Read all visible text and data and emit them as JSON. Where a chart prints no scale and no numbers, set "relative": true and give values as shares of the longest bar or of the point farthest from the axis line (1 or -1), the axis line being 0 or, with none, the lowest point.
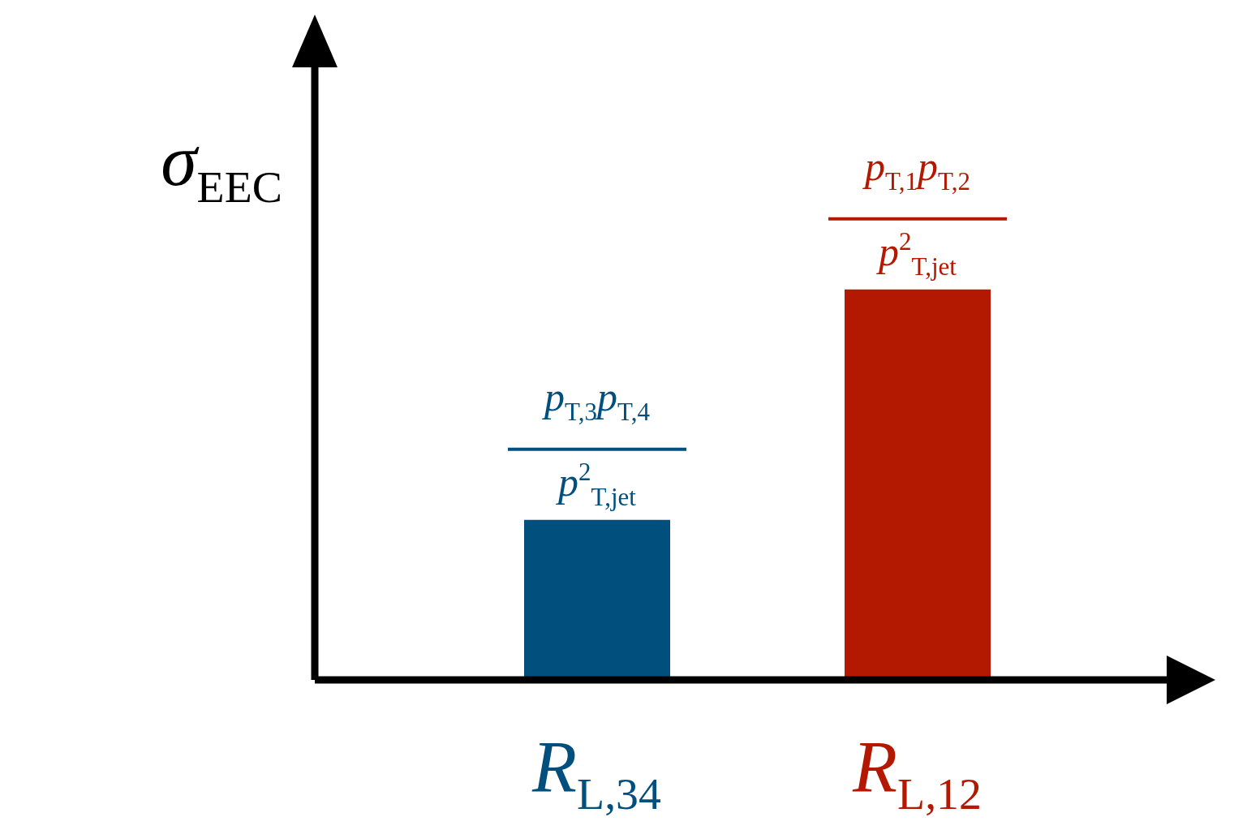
{
  "chart_data": {
    "type": "bar",
    "relative": true,
    "ylabel": "σ$_{EEC}$",
    "categories": [
      "R$_{L,34}$",
      "R$_{L,12}$"
    ],
    "values": [
      0.41,
      1
    ],
    "colors": [
      "#004f7c",
      "#b31800"
    ],
    "annotations": [
      {
        "text": "p$_{T,3}$p$_{T,4}$",
        "x": "R$_{L,34}$",
        "y": 0.41
      },
      {
        "text": "p$^{2}$$_{T,jet}$",
        "x": "R$_{L,34}$",
        "y": 0.41
      },
      {
        "text": "p$_{T,1}$p$_{T,2}$",
        "x": "R$_{L,12}$",
        "y": 1
      },
      {
        "text": "p$^{2}$$_{T,jet}$",
        "x": "R$_{L,12}$",
        "y": 1
      }
    ]
  }
}
